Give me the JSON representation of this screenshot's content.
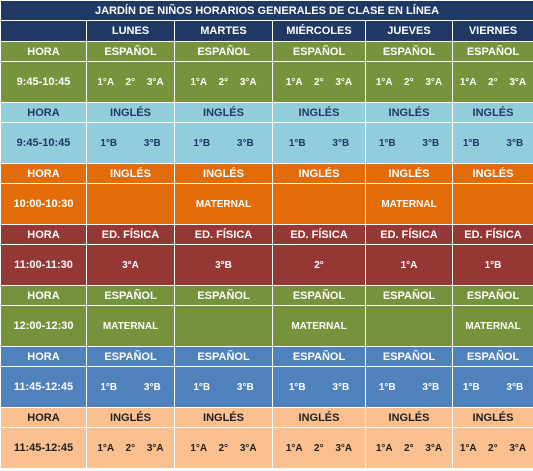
{
  "title": "JARDÍN DE NIÑOS HORARIOS GENERALES DE CLASE EN LÍNEA",
  "days": [
    "LUNES",
    "MARTES",
    "MIÉRCOLES",
    "JUEVES",
    "VIERNES"
  ],
  "hora_label": "HORA",
  "blocks": [
    {
      "time": "9:45-10:45",
      "subjects": [
        "ESPAÑOL",
        "ESPAÑOL",
        "ESPAÑOL",
        "ESPAÑOL",
        "ESPAÑOL"
      ],
      "groups": [
        "1°A 2° 3°A",
        "1°A 2° 3°A",
        "1°A 2° 3°A",
        "1°A 2° 3°A",
        "1°A 2° 3°A"
      ]
    },
    {
      "time": "9:45-10:45",
      "subjects": [
        "INGLÉS",
        "INGLÉS",
        "INGLÉS",
        "INGLÉS",
        "INGLÉS"
      ],
      "groups": [
        "1°B 3°B",
        "1°B 3°B",
        "1°B 3°B",
        "1°B 3°B",
        "1°B 3°B"
      ]
    },
    {
      "time": "10:00-10:30",
      "subjects": [
        "INGLÉS",
        "INGLÉS",
        "INGLÉS",
        "INGLÉS",
        "INGLÉS"
      ],
      "groups": [
        "",
        "MATERNAL",
        "",
        "MATERNAL",
        ""
      ]
    },
    {
      "time": "11:00-11:30",
      "subjects": [
        "ED. FÍSICA",
        "ED. FÍSICA",
        "ED. FÍSICA",
        "ED. FÍSICA",
        "ED. FÍSICA"
      ],
      "groups": [
        "3°A",
        "3°B",
        "2°",
        "1°A",
        "1°B"
      ]
    },
    {
      "time": "12:00-12:30",
      "subjects": [
        "ESPAÑOL",
        "ESPAÑOL",
        "ESPAÑOL",
        "ESPAÑOL",
        "ESPAÑOL"
      ],
      "groups": [
        "MATERNAL",
        "",
        "MATERNAL",
        "",
        "MATERNAL"
      ]
    },
    {
      "time": "11:45-12:45",
      "subjects": [
        "ESPAÑOL",
        "ESPAÑOL",
        "ESPAÑOL",
        "ESPAÑOL",
        "ESPAÑOL"
      ],
      "groups": [
        "1°B 3°B",
        "1°B 3°B",
        "1°B 3°B",
        "1°B 3°B",
        "1°B 3°B"
      ]
    },
    {
      "time": "11:45-12:45",
      "subjects": [
        "INGLÉS",
        "INGLÉS",
        "INGLÉS",
        "INGLÉS",
        "INGLÉS"
      ],
      "groups": [
        "1°A 2° 3°A",
        "1°A 2° 3°A",
        "1°A 2° 3°A",
        "1°A 2° 3°A",
        "1°A 2° 3°A"
      ]
    }
  ],
  "colors": {
    "header_navy": "#1f3864",
    "block_0": "#77933c",
    "block_1": "#92cddc",
    "block_2": "#e36c09",
    "block_3": "#953735",
    "block_4": "#76923c",
    "block_5": "#4f81bd",
    "block_6": "#fac090"
  }
}
